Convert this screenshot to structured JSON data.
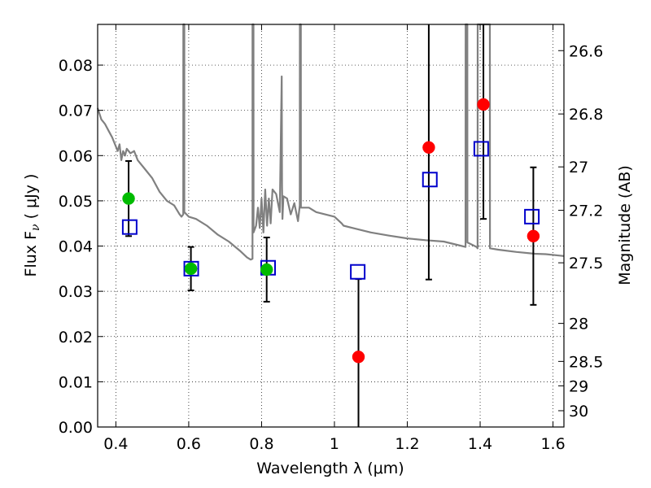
{
  "chart_data": {
    "type": "scatter",
    "xlabel": "Wavelength  λ (μm)",
    "ylabel": "Flux  F",
    "ylabel_subscript": "ν",
    "ylabel_unit": " ( μJy )",
    "y2label": "Magnitude (AB)",
    "xlim": [
      0.35,
      1.63
    ],
    "ylim": [
      0.0,
      0.089
    ],
    "grid": true,
    "x_ticks": [
      0.4,
      0.6,
      0.8,
      1.0,
      1.2,
      1.4,
      1.6
    ],
    "x_tick_labels": [
      "0.4",
      "0.6",
      "0.8",
      "1",
      "1.2",
      "1.4",
      "1.6"
    ],
    "y_ticks": [
      0.0,
      0.01,
      0.02,
      0.03,
      0.04,
      0.05,
      0.06,
      0.07,
      0.08
    ],
    "y_tick_labels": [
      "0.00",
      "0.01",
      "0.02",
      "0.03",
      "0.04",
      "0.05",
      "0.06",
      "0.07",
      "0.08"
    ],
    "y2_ticks": [
      {
        "label": "26.6",
        "flux": 0.0832
      },
      {
        "label": "26.8",
        "flux": 0.0692
      },
      {
        "label": "27",
        "flux": 0.0575
      },
      {
        "label": "27.2",
        "flux": 0.0479
      },
      {
        "label": "27.5",
        "flux": 0.0363
      },
      {
        "label": "28",
        "flux": 0.0229
      },
      {
        "label": "28.5",
        "flux": 0.0145
      },
      {
        "label": "29",
        "flux": 0.0091
      },
      {
        "label": "30",
        "flux": 0.0036
      }
    ],
    "series": [
      {
        "name": "model spectrum",
        "style": "line",
        "color": "#808080",
        "x": [
          0.35,
          0.36,
          0.37,
          0.38,
          0.39,
          0.4,
          0.405,
          0.41,
          0.415,
          0.42,
          0.425,
          0.43,
          0.44,
          0.45,
          0.46,
          0.48,
          0.5,
          0.52,
          0.54,
          0.56,
          0.575,
          0.58,
          0.585,
          0.5852,
          0.5878,
          0.588,
          0.6,
          0.62,
          0.65,
          0.68,
          0.71,
          0.74,
          0.76,
          0.77,
          0.775,
          0.7752,
          0.7778,
          0.778,
          0.785,
          0.79,
          0.795,
          0.8,
          0.805,
          0.81,
          0.815,
          0.82,
          0.825,
          0.83,
          0.84,
          0.85,
          0.8552,
          0.8562,
          0.8572,
          0.86,
          0.87,
          0.88,
          0.89,
          0.9,
          0.905,
          0.9052,
          0.9078,
          0.908,
          0.93,
          0.95,
          1.0,
          1.02,
          1.025,
          1.05,
          1.1,
          1.15,
          1.2,
          1.25,
          1.3,
          1.35,
          1.36,
          1.3602,
          1.3648,
          1.365,
          1.38,
          1.39,
          1.393,
          1.3932,
          1.4268,
          1.427,
          1.45,
          1.5,
          1.55,
          1.58,
          1.63
        ],
        "y": [
          0.0705,
          0.068,
          0.067,
          0.0655,
          0.064,
          0.062,
          0.061,
          0.0625,
          0.059,
          0.061,
          0.06,
          0.0615,
          0.0605,
          0.061,
          0.059,
          0.057,
          0.055,
          0.052,
          0.05,
          0.049,
          0.047,
          0.0465,
          0.047,
          0.089,
          0.089,
          0.0475,
          0.0465,
          0.046,
          0.0445,
          0.0425,
          0.041,
          0.039,
          0.0375,
          0.037,
          0.0372,
          0.089,
          0.089,
          0.043,
          0.0445,
          0.0485,
          0.044,
          0.0505,
          0.043,
          0.0525,
          0.0445,
          0.0505,
          0.045,
          0.0525,
          0.0515,
          0.0475,
          0.0775,
          0.053,
          0.046,
          0.051,
          0.0505,
          0.047,
          0.0495,
          0.0455,
          0.049,
          0.089,
          0.089,
          0.0485,
          0.0485,
          0.0475,
          0.0465,
          0.045,
          0.0445,
          0.044,
          0.043,
          0.0423,
          0.0417,
          0.0413,
          0.041,
          0.04,
          0.0398,
          0.089,
          0.089,
          0.0408,
          0.0402,
          0.0398,
          0.0395,
          0.089,
          0.089,
          0.0395,
          0.0392,
          0.0387,
          0.0383,
          0.0382,
          0.0378
        ]
      },
      {
        "name": "observed flux (green)",
        "style": "marker-circle",
        "color": "#00bb00",
        "points": [
          {
            "x": 0.435,
            "y": 0.0505,
            "err": 0.0083
          },
          {
            "x": 0.606,
            "y": 0.035,
            "err": 0.0048
          },
          {
            "x": 0.814,
            "y": 0.0348,
            "err": 0.0071
          }
        ]
      },
      {
        "name": "observed flux (red)",
        "style": "marker-circle",
        "color": "#ff0000",
        "points": [
          {
            "x": 1.066,
            "y": 0.0155,
            "err": 0.0172
          },
          {
            "x": 1.259,
            "y": 0.0618,
            "err": 0.0292
          },
          {
            "x": 1.409,
            "y": 0.0713,
            "err": 0.0253
          },
          {
            "x": 1.546,
            "y": 0.0422,
            "err": 0.0152
          }
        ]
      },
      {
        "name": "model synthetic photometry",
        "style": "marker-open-square",
        "color": "#0000cc",
        "points": [
          {
            "x": 0.438,
            "y": 0.0442
          },
          {
            "x": 0.607,
            "y": 0.035
          },
          {
            "x": 0.818,
            "y": 0.0352
          },
          {
            "x": 1.064,
            "y": 0.0343
          },
          {
            "x": 1.262,
            "y": 0.0547
          },
          {
            "x": 1.403,
            "y": 0.0615
          },
          {
            "x": 1.542,
            "y": 0.0465
          }
        ]
      }
    ]
  }
}
